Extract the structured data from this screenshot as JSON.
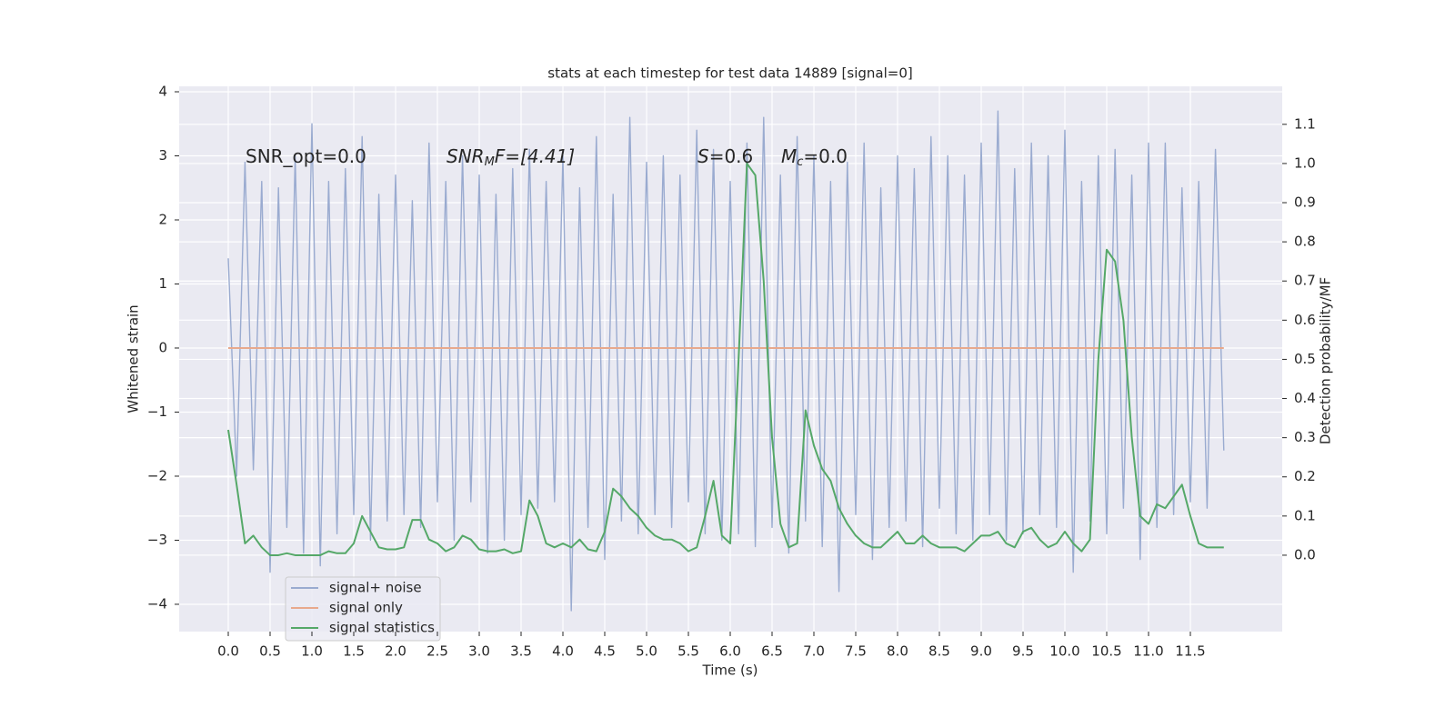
{
  "chart_data": {
    "type": "line",
    "title": "stats at each timestep for test data 14889 [signal=0]",
    "xlabel": "Time (s)",
    "ylabel": "Whitened strain",
    "y2label": "Detection probability/MF",
    "annotations": [
      [
        "SNR_opt=0.0"
      ],
      [
        "SNR",
        "M",
        "F=[4.41]"
      ],
      [
        "S",
        "=0.6"
      ],
      [
        "M",
        "c",
        "=0.0"
      ]
    ],
    "grid": true,
    "legend": "lower left",
    "xlim": [
      -0.587,
      12.598
    ],
    "xticks": [
      {
        "value": 0,
        "label": "0.0"
      },
      {
        "value": 0.5,
        "label": "0.5"
      },
      {
        "value": 1,
        "label": "1.0"
      },
      {
        "value": 1.5,
        "label": "1.5"
      },
      {
        "value": 2,
        "label": "2.0"
      },
      {
        "value": 2.5,
        "label": "2.5"
      },
      {
        "value": 3,
        "label": "3.0"
      },
      {
        "value": 3.5,
        "label": "3.5"
      },
      {
        "value": 4,
        "label": "4.0"
      },
      {
        "value": 4.5,
        "label": "4.5"
      },
      {
        "value": 5,
        "label": "5.0"
      },
      {
        "value": 5.5,
        "label": "5.5"
      },
      {
        "value": 6,
        "label": "6.0"
      },
      {
        "value": 6.5,
        "label": "6.5"
      },
      {
        "value": 7,
        "label": "7.0"
      },
      {
        "value": 7.5,
        "label": "7.5"
      },
      {
        "value": 8,
        "label": "8.0"
      },
      {
        "value": 8.5,
        "label": "8.5"
      },
      {
        "value": 9,
        "label": "9.0"
      },
      {
        "value": 9.5,
        "label": "9.5"
      },
      {
        "value": 10,
        "label": "10.0"
      },
      {
        "value": 10.5,
        "label": "10.5"
      },
      {
        "value": 11,
        "label": "11.0"
      },
      {
        "value": 11.5,
        "label": "11.5"
      }
    ],
    "ylim": [
      -4.426,
      4.085
    ],
    "yticks": [
      {
        "value": -4,
        "label": "−4"
      },
      {
        "value": -3,
        "label": "−3"
      },
      {
        "value": -2,
        "label": "−2"
      },
      {
        "value": -1,
        "label": "−1"
      },
      0,
      1,
      2,
      3,
      4
    ],
    "y2lim": [
      -0.195,
      1.197
    ],
    "y2ticks": [
      {
        "value": 0,
        "label": "0.0"
      },
      {
        "value": 0.1,
        "label": "0.1"
      },
      {
        "value": 0.2,
        "label": "0.2"
      },
      {
        "value": 0.3,
        "label": "0.3"
      },
      {
        "value": 0.4,
        "label": "0.4"
      },
      {
        "value": 0.5,
        "label": "0.5"
      },
      {
        "value": 0.6,
        "label": "0.6"
      },
      {
        "value": 0.7,
        "label": "0.7"
      },
      {
        "value": 0.8,
        "label": "0.8"
      },
      {
        "value": 0.9,
        "label": "0.9"
      },
      {
        "value": 1.0,
        "label": "1.0"
      },
      {
        "value": 1.1,
        "label": "1.1"
      }
    ],
    "x": [
      0,
      0.1,
      0.2,
      0.3,
      0.4,
      0.5,
      0.6,
      0.7,
      0.8,
      0.9,
      1,
      1.1,
      1.2,
      1.3,
      1.4,
      1.5,
      1.6,
      1.7,
      1.8,
      1.9,
      2,
      2.1,
      2.2,
      2.3,
      2.4,
      2.5,
      2.6,
      2.7,
      2.8,
      2.9,
      3,
      3.1,
      3.2,
      3.3,
      3.4,
      3.5,
      3.6,
      3.7,
      3.8,
      3.9,
      4,
      4.1,
      4.2,
      4.3,
      4.4,
      4.5,
      4.6,
      4.7,
      4.8,
      4.9,
      5,
      5.1,
      5.2,
      5.3,
      5.4,
      5.5,
      5.6,
      5.7,
      5.8,
      5.9,
      6,
      6.1,
      6.2,
      6.3,
      6.4,
      6.5,
      6.6,
      6.7,
      6.8,
      6.9,
      7,
      7.1,
      7.2,
      7.3,
      7.4,
      7.5,
      7.6,
      7.7,
      7.8,
      7.9,
      8,
      8.1,
      8.2,
      8.3,
      8.4,
      8.5,
      8.6,
      8.7,
      8.8,
      8.9,
      9,
      9.1,
      9.2,
      9.3,
      9.4,
      9.5,
      9.6,
      9.7,
      9.8,
      9.9,
      10,
      10.1,
      10.2,
      10.3,
      10.4,
      10.5,
      10.6,
      10.7,
      10.8,
      10.9,
      11,
      11.1,
      11.2,
      11.3,
      11.4,
      11.5,
      11.6,
      11.7,
      11.8,
      11.9
    ],
    "series": [
      {
        "name": "signal+ noise",
        "color": "#9aabd0",
        "values": [
          1.4,
          -2.0,
          2.9,
          -1.9,
          2.6,
          -3.5,
          2.5,
          -2.8,
          3.0,
          -3.2,
          3.5,
          -3.4,
          2.6,
          -2.9,
          2.8,
          -2.6,
          3.3,
          -3.0,
          2.4,
          -2.7,
          2.7,
          -2.6,
          2.3,
          -2.8,
          3.2,
          -2.4,
          2.6,
          -3.0,
          3.0,
          -2.4,
          2.7,
          -3.2,
          2.4,
          -3.0,
          2.8,
          -2.6,
          3.1,
          -2.5,
          2.6,
          -2.4,
          3.0,
          -4.1,
          2.5,
          -2.8,
          3.3,
          -3.3,
          2.4,
          -2.7,
          3.6,
          -2.9,
          2.9,
          -2.6,
          3.0,
          -2.8,
          2.7,
          -2.4,
          3.4,
          -2.9,
          3.1,
          -3.0,
          2.6,
          -2.9,
          3.2,
          -3.1,
          3.6,
          -2.8,
          2.7,
          -3.2,
          3.3,
          -2.7,
          3.0,
          -3.1,
          2.6,
          -3.8,
          2.9,
          -2.6,
          3.2,
          -3.3,
          2.5,
          -2.8,
          3.0,
          -2.7,
          2.8,
          -3.1,
          3.3,
          -2.5,
          3.0,
          -2.9,
          2.7,
          -3.0,
          3.2,
          -2.6,
          3.7,
          -3.0,
          2.8,
          -2.9,
          3.2,
          -2.6,
          3.0,
          -2.8,
          3.4,
          -3.5,
          2.6,
          -2.7,
          3.0,
          -2.9,
          3.1,
          -2.5,
          2.7,
          -3.3,
          3.2,
          -2.8,
          3.2,
          -2.6,
          2.5,
          -2.4,
          2.6,
          -2.5,
          3.1,
          -1.6
        ]
      },
      {
        "name": "signal only",
        "color": "#e8a98c",
        "values": [
          0,
          0,
          0,
          0,
          0,
          0,
          0,
          0,
          0,
          0,
          0,
          0,
          0,
          0,
          0,
          0,
          0,
          0,
          0,
          0,
          0,
          0,
          0,
          0,
          0,
          0,
          0,
          0,
          0,
          0,
          0,
          0,
          0,
          0,
          0,
          0,
          0,
          0,
          0,
          0,
          0,
          0,
          0,
          0,
          0,
          0,
          0,
          0,
          0,
          0,
          0,
          0,
          0,
          0,
          0,
          0,
          0,
          0,
          0,
          0,
          0,
          0,
          0,
          0,
          0,
          0,
          0,
          0,
          0,
          0,
          0,
          0,
          0,
          0,
          0,
          0,
          0,
          0,
          0,
          0,
          0,
          0,
          0,
          0,
          0,
          0,
          0,
          0,
          0,
          0,
          0,
          0,
          0,
          0,
          0,
          0,
          0,
          0,
          0,
          0,
          0,
          0,
          0,
          0,
          0,
          0,
          0,
          0,
          0,
          0,
          0,
          0,
          0,
          0,
          0,
          0,
          0,
          0,
          0,
          0
        ]
      },
      {
        "name": "signal statistics",
        "color": "#55a868",
        "axis": "y2",
        "values": [
          0.32,
          0.18,
          0.03,
          0.05,
          0.02,
          0.0,
          0.0,
          0.005,
          0.0,
          0.0,
          0.0,
          0.0,
          0.01,
          0.005,
          0.005,
          0.03,
          0.1,
          0.06,
          0.02,
          0.015,
          0.015,
          0.02,
          0.09,
          0.09,
          0.04,
          0.03,
          0.01,
          0.02,
          0.05,
          0.04,
          0.015,
          0.01,
          0.01,
          0.015,
          0.005,
          0.01,
          0.14,
          0.1,
          0.03,
          0.02,
          0.03,
          0.02,
          0.04,
          0.015,
          0.01,
          0.06,
          0.17,
          0.15,
          0.12,
          0.1,
          0.07,
          0.05,
          0.04,
          0.04,
          0.03,
          0.01,
          0.02,
          0.1,
          0.19,
          0.05,
          0.03,
          0.5,
          1.0,
          0.97,
          0.7,
          0.3,
          0.08,
          0.02,
          0.03,
          0.37,
          0.28,
          0.22,
          0.19,
          0.12,
          0.08,
          0.05,
          0.03,
          0.02,
          0.02,
          0.04,
          0.06,
          0.03,
          0.03,
          0.05,
          0.03,
          0.02,
          0.02,
          0.02,
          0.01,
          0.03,
          0.05,
          0.05,
          0.06,
          0.03,
          0.02,
          0.06,
          0.07,
          0.04,
          0.02,
          0.03,
          0.06,
          0.03,
          0.01,
          0.04,
          0.5,
          0.78,
          0.75,
          0.6,
          0.3,
          0.1,
          0.08,
          0.13,
          0.12,
          0.15,
          0.18,
          0.1,
          0.03,
          0.02,
          0.02,
          0.02
        ]
      }
    ]
  }
}
